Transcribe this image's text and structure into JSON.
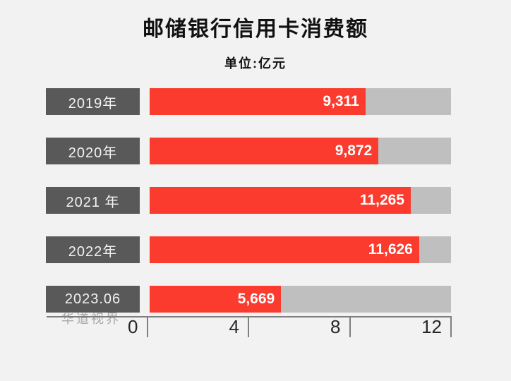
{
  "title": "邮储银行信用卡消费额",
  "subtitle": "单位:亿元",
  "watermark": "华道视界",
  "colors": {
    "background": "#f2f2f2",
    "bar_fill": "#fa3b2e",
    "bar_track": "#bfbfbf",
    "category_box": "#595959",
    "category_text": "#f2f2f2",
    "title_text": "#111111",
    "value_text": "#ffffff",
    "axis_line": "#7f7f7f",
    "axis_text": "#262626",
    "watermark_text": "#a8a8a8"
  },
  "chart_data": {
    "type": "bar",
    "orientation": "horizontal",
    "title": "邮储银行信用卡消费额",
    "unit_label": "单位:亿元",
    "categories": [
      "2019年",
      "2020年",
      "2021 年",
      "2022年",
      "2023.06"
    ],
    "values": [
      9311,
      9872,
      11265,
      11626,
      5669
    ],
    "value_labels": [
      "9,311",
      "9,872",
      "11,265",
      "11,626",
      "5,669"
    ],
    "xlabel": "",
    "ylabel": "",
    "axis_ticks": [
      "0",
      "4",
      "8",
      "12"
    ],
    "axis_tick_unit": "thousands (千亿元 scale marks)",
    "xlim": [
      0,
      13000
    ],
    "grid": false,
    "legend": false
  }
}
